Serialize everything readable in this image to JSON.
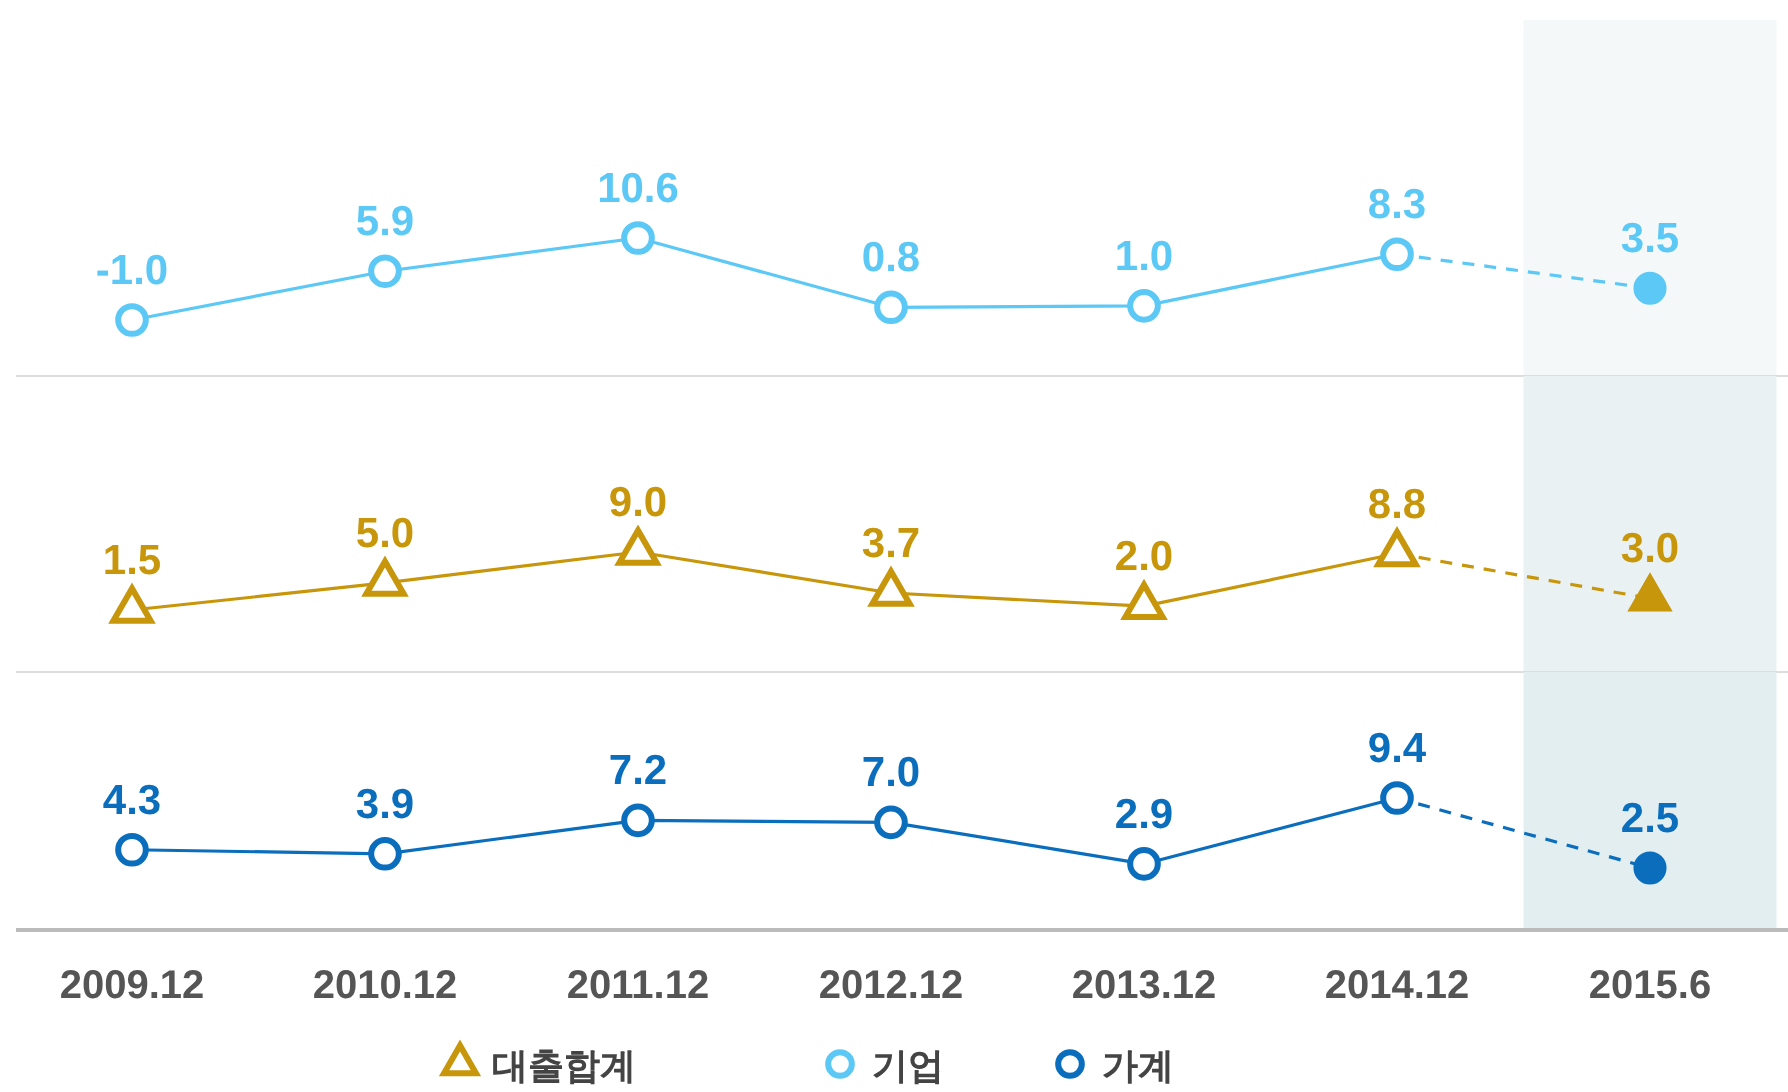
{
  "chart_data": [
    {
      "type": "line",
      "categories": [
        "2009.12",
        "2010.12",
        "2011.12",
        "2012.12",
        "2013.12",
        "2014.12",
        "2015.6"
      ],
      "tick_labels": false,
      "marker": "circle",
      "legend": "bottom",
      "bands": [
        {
          "axis": "x",
          "from": "2015.6",
          "to": "2015.6",
          "color": "#f4f8f9"
        }
      ],
      "series": [
        {
          "name": "기업",
          "color": "#5bc8f5",
          "values": [
            -1.0,
            5.9,
            10.6,
            0.8,
            1.0,
            8.3,
            null
          ],
          "value_labels": [
            "-1.0",
            "5.9",
            "10.6",
            "0.8",
            "1.0",
            "8.3",
            null
          ]
        },
        {
          "color": "#5bc8f5",
          "line_style": "dashed",
          "values": [
            null,
            null,
            null,
            null,
            null,
            8.3,
            3.5
          ],
          "value_labels": [
            null,
            null,
            null,
            null,
            null,
            null,
            "3.5"
          ]
        }
      ]
    },
    {
      "type": "line",
      "categories": [
        "2009.12",
        "2010.12",
        "2011.12",
        "2012.12",
        "2013.12",
        "2014.12",
        "2015.6"
      ],
      "tick_labels": false,
      "marker": "triangle",
      "legend": "bottom left",
      "bands": [
        {
          "axis": "x",
          "from": "2015.6",
          "to": "2015.6",
          "color": "#e9f1f3"
        }
      ],
      "series": [
        {
          "name": "대출합계",
          "color": "#c8960a",
          "values": [
            1.5,
            5.0,
            9.0,
            3.7,
            2.0,
            8.8,
            null
          ],
          "value_labels": [
            "1.5",
            "5.0",
            "9.0",
            "3.7",
            "2.0",
            "8.8",
            null
          ]
        },
        {
          "color": "#c8960a",
          "line_style": "dashed",
          "values": [
            null,
            null,
            null,
            null,
            null,
            8.8,
            3.0
          ],
          "value_labels": [
            null,
            null,
            null,
            null,
            null,
            null,
            "3.0"
          ]
        }
      ]
    },
    {
      "type": "line",
      "categories": [
        "2009.12",
        "2010.12",
        "2011.12",
        "2012.12",
        "2013.12",
        "2014.12",
        "2015.6"
      ],
      "tick_labels": "x",
      "marker": "circle",
      "legend": "bottom right",
      "bands": [
        {
          "axis": "x",
          "from": "2015.6",
          "to": "2015.6",
          "color": "#e3eef1"
        }
      ],
      "series": [
        {
          "name": "가계",
          "color": "#0a6ebd",
          "values": [
            4.3,
            3.9,
            7.2,
            7.0,
            2.9,
            9.4,
            null
          ],
          "value_labels": [
            "4.3",
            "3.9",
            "7.2",
            "7.0",
            "2.9",
            "9.4",
            null
          ]
        },
        {
          "color": "#0a6ebd",
          "line_style": "dashed",
          "values": [
            null,
            null,
            null,
            null,
            null,
            9.4,
            2.5
          ],
          "value_labels": [
            null,
            null,
            null,
            null,
            null,
            null,
            "2.5"
          ]
        }
      ]
    }
  ]
}
